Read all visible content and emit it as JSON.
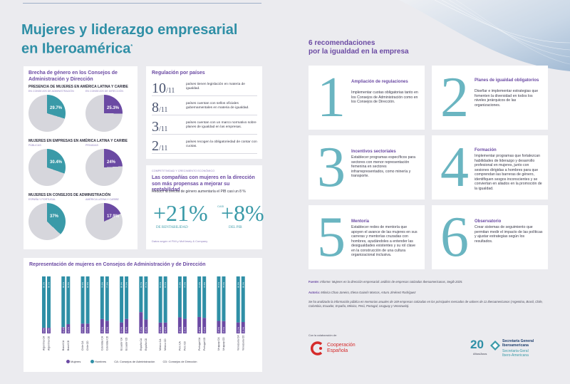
{
  "header": {
    "title_line1": "Mujeres y liderazgo empresarial",
    "title_line2": "en Iberoamérica",
    "title_mark": "*"
  },
  "brecha": {
    "title_line1": "Brecha de género en los Consejos de",
    "title_line2": "Administración y Dirección",
    "groups": [
      {
        "title": "PRESENCIA DE MUJERES EN AMÉRICA LATINA Y CARIBE",
        "pies": [
          {
            "caption": "EN CONSEJOS DE ADMINISTRACIÓN",
            "label": "29.7%",
            "value": 29.7
          },
          {
            "caption": "EN CONSEJOS DE DIRECCIÓN",
            "label": "25.3%",
            "value": 25.3
          }
        ]
      },
      {
        "title": "MUJERES EN EMPRESAS EN AMÉRICA LATINA Y CARIBE",
        "pies": [
          {
            "caption": "PÚBLICAS",
            "label": "30.4%",
            "value": 30.4
          },
          {
            "caption": "PRIVADAS",
            "label": "24%",
            "value": 24
          }
        ]
      },
      {
        "title": "MUJERES EN CONSEJOS DE ADMINISTRACIÓN",
        "pies": [
          {
            "caption": "ESPAÑA Y PORTUGAL",
            "label": "37%",
            "value": 37
          },
          {
            "caption": "AMÉRICA LATINA Y CARIBE",
            "label": "17.9%",
            "value": 17.9
          }
        ]
      }
    ],
    "colors": {
      "teal": "#3a9aa8",
      "purple": "#6b4aa3",
      "grey": "#d6d6dc"
    }
  },
  "regulacion": {
    "title": "Regulación por países",
    "rows": [
      {
        "num": "10",
        "den": "/11",
        "text": "países tienen legislación en materia de igualdad."
      },
      {
        "num": "8",
        "den": "/11",
        "text": "países cuentan con sellos oficiales gubernamentales en materia de igualdad."
      },
      {
        "num": "3",
        "den": "/11",
        "text": "países cuentan con un marco normativo sobre planes de igualdad en las empresas."
      },
      {
        "num": "2",
        "den": "/11",
        "text": "países recogen la obligatoriedad de contar con cuotas."
      }
    ]
  },
  "rentab": {
    "kicker": "COMPETITIVIDAD Y CRECIMIENTO ECONÓMICO",
    "title": "Las compañías con mujeres en la dirección son más propensas a mejorar su rentabilidad",
    "subtitle": "Reducir la brecha de género aumentaría el PIB casi un 8 %",
    "stat1_value": "+21%",
    "stat1_label": "DE RENTABILIDAD",
    "stat2_prefix": "CASI",
    "stat2_value": "+8%",
    "stat2_label": "DEL PIB",
    "source": "Datos según el FMI y McKinsey & Company"
  },
  "chart_data": {
    "type": "bar",
    "title": "Representación de mujeres en Consejos de Administración y de Dirección",
    "categories": [
      "Argentina CA",
      "Argentina CD",
      "Brasil CA",
      "Brasil CD",
      "Chile CA",
      "Chile CD",
      "Colombia CA",
      "Colombia CD",
      "Ecuador CA",
      "Ecuador CD",
      "España CA",
      "España CD",
      "México CA",
      "México CD",
      "Perú CA",
      "Perú CD",
      "Portugal CA",
      "Portugal CD",
      "Uruguay CA",
      "Uruguay CD",
      "Venezuela CA",
      "Venezuela CD"
    ],
    "series": [
      {
        "name": "Mujeres",
        "values": [
          9.8,
          9.9,
          10.9,
          16.2,
          17.1,
          17.1,
          25.2,
          22.2,
          19.2,
          25.4,
          37.3,
          24.3,
          18.9,
          18.9,
          28.2,
          25.5,
          28.8,
          27.2,
          21.9,
          21.6,
          19.2,
          20.0
        ]
      },
      {
        "name": "Hombres",
        "values": [
          90.2,
          90.1,
          89.1,
          83.8,
          82.9,
          82.9,
          74.8,
          77.8,
          80.8,
          74.6,
          62.7,
          75.7,
          81.1,
          81.1,
          71.8,
          74.5,
          71.2,
          72.8,
          78.1,
          78.4,
          80.8,
          80.0
        ]
      }
    ],
    "ylim": [
      0,
      100
    ],
    "legend": {
      "women": "Mujeres",
      "men": "Hombres",
      "ca": "CA: Consejos de Administración",
      "cd": "CD: Consejos de Dirección"
    },
    "colors": {
      "women": "#6b4aa3",
      "men": "#2f8fa6"
    }
  },
  "recs": {
    "title_line1": "6 recomendaciones",
    "title_line2": "por la igualdad en la empresa",
    "items": [
      {
        "num": "1",
        "title": "Ampliación de regulaciones",
        "body": "Implementar cuotas obligatorias tanto en los Consejos de Administración como en los Consejos de Dirección."
      },
      {
        "num": "2",
        "title": "Planes de igualdad obligatorios",
        "body": "Diseñar e implementar estrategias que fomenten la diversidad en todos los niveles jerárquicos de las organizaciones."
      },
      {
        "num": "3",
        "title": "Incentivos sectoriales",
        "body": "Establecer programas específicos para sectores con menor representación femenina en sectores infrarrepresentados, como minería y transporte."
      },
      {
        "num": "4",
        "title": "Formación",
        "body": "Implementar programas que fortalezcan habilidades de liderazgo y desarrollo profesional en mujeres, junto con sesiones dirigidas a hombres para que comprendan las barreras de género, identifiquen sesgos inconscientes y se conviertan en aliados en la promoción de la igualdad."
      },
      {
        "num": "5",
        "title": "Mentoría",
        "body": "Establecer redes de mentoría que apoyen el avance de las mujeres en sus carreras y mentorías cruzadas con hombres, ayudándoles a entender las desigualdades existentes y su rol clave en la construcción de una cultura organizacional inclusiva."
      },
      {
        "num": "6",
        "title": "Observatorio",
        "body": "Crear sistemas de seguimiento que permitan medir el impacto de las políticas y ajustar estrategias según los resultados."
      }
    ]
  },
  "footer": {
    "fuente_label": "Fuente:",
    "fuente_text": "Informe: Mujeres en la dirección empresarial: análisis de empresas cotizadas Iberoamericanas, Segib 2025.",
    "autoria_label": "Autoría:",
    "autoria_text": "Mónica Chao Janeiro, Elena Gaiarín Marcos, Arturo Jiménez Rodríguez",
    "note": "Se ha analizado la información pública en memorias anuales de 169 empresas cotizadas en los principales mercados de valores de 11 Iberoamericanos (Argentina, Brasil, Chile, Colombia, Ecuador, España, México, Perú, Portugal, Uruguay y Venezuela).",
    "collab": "Con la colaboración de:",
    "coop_line1": "Cooperación",
    "coop_line2": "Española",
    "anniv_num": "20",
    "anniv_label": "Años/Anos",
    "segib_es1": "Secretaría General",
    "segib_es2": "Iberoamericana",
    "segib_pt1": "Secretaria-Geral",
    "segib_pt2": "Ibero-Americana"
  }
}
